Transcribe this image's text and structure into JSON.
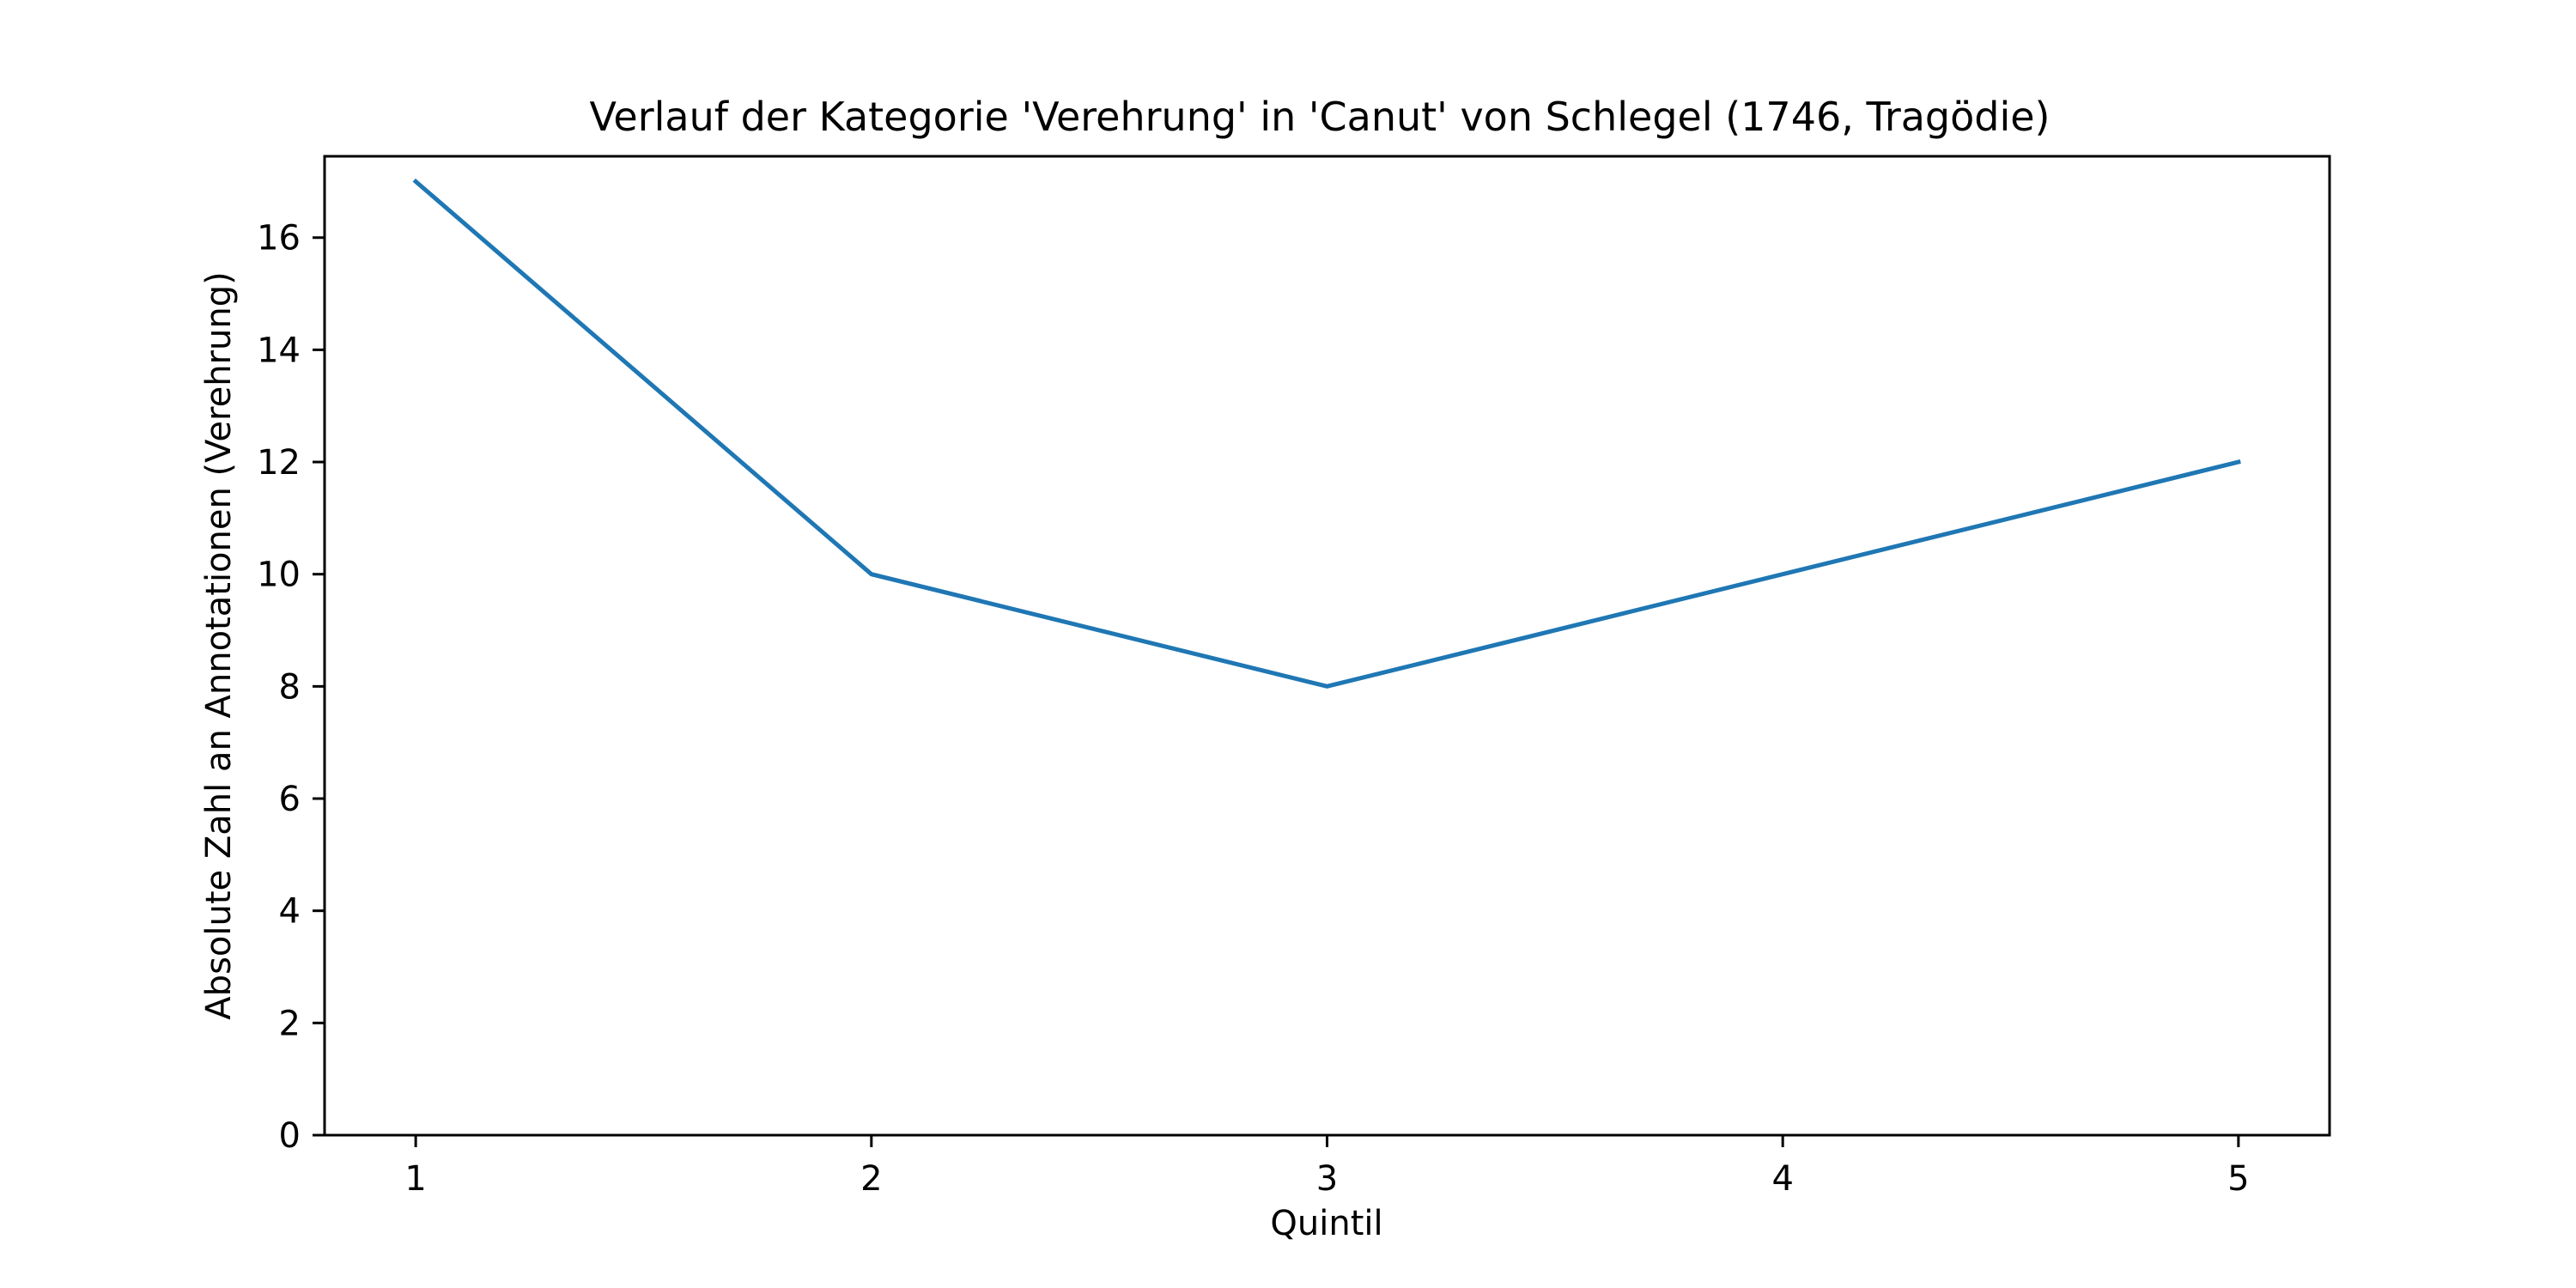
{
  "chart_data": {
    "type": "line",
    "title": "Verlauf der Kategorie 'Verehrung' in 'Canut' von Schlegel (1746, Tragödie)",
    "xlabel": "Quintil",
    "ylabel": "Absolute Zahl an Annotationen (Verehrung)",
    "x": [
      1,
      2,
      3,
      4,
      5
    ],
    "series": [
      {
        "values": [
          17,
          10,
          8,
          10,
          12
        ],
        "color": "#1f77b4"
      }
    ],
    "xlim": [
      0.8,
      5.2
    ],
    "ylim": [
      0,
      17.45
    ],
    "xticks": [
      "1",
      "2",
      "3",
      "4",
      "5"
    ],
    "yticks": [
      "0",
      "2",
      "4",
      "6",
      "8",
      "10",
      "12",
      "14",
      "16"
    ],
    "grid": false,
    "legend": "none"
  }
}
